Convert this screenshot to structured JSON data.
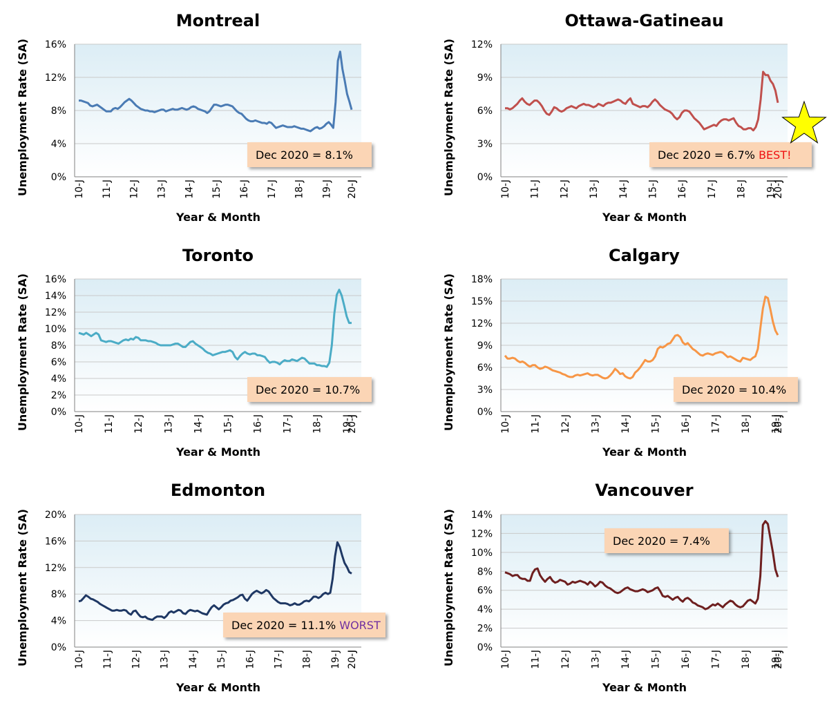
{
  "colors": {
    "plot_bg_top": "#dcedf5",
    "plot_bg_bottom": "#ffffff",
    "callout_fill": "#fbd5b5",
    "best_color": "#ee1111",
    "worst_color": "#7030a0",
    "star_fill": "#ffff00"
  },
  "chart_data": [
    {
      "type": "line",
      "title": "Montreal",
      "xlabel": "Year & Month",
      "ylabel": "Unemployment Rate (SA)",
      "color": "#4a7bb4",
      "ylim": [
        0,
        16
      ],
      "yticks": [
        "0%",
        "4%",
        "8%",
        "12%",
        "16%"
      ],
      "xticks": [
        "10-J",
        "11-J",
        "12-J",
        "13-J",
        "14-J",
        "15-J",
        "16-J",
        "17-J",
        "18-J",
        "19-J",
        "20-J",
        "J"
      ],
      "callout": {
        "text": "Dec 2020 = 8.1%",
        "tag": "",
        "pos": "lower-right"
      },
      "x_start": "2010-01",
      "values": [
        9.2,
        9.2,
        9.1,
        9.0,
        8.9,
        8.6,
        8.5,
        8.6,
        8.7,
        8.5,
        8.3,
        8.1,
        7.9,
        7.9,
        7.9,
        8.2,
        8.3,
        8.2,
        8.4,
        8.7,
        9.0,
        9.2,
        9.4,
        9.2,
        8.9,
        8.6,
        8.4,
        8.2,
        8.1,
        8.0,
        8.0,
        7.9,
        7.9,
        7.8,
        7.9,
        8.0,
        8.1,
        8.1,
        7.9,
        8.0,
        8.1,
        8.2,
        8.1,
        8.1,
        8.2,
        8.3,
        8.2,
        8.1,
        8.2,
        8.4,
        8.5,
        8.4,
        8.2,
        8.1,
        8.0,
        7.9,
        7.7,
        7.9,
        8.3,
        8.7,
        8.7,
        8.6,
        8.5,
        8.6,
        8.7,
        8.7,
        8.6,
        8.5,
        8.2,
        7.9,
        7.7,
        7.6,
        7.3,
        7.0,
        6.8,
        6.7,
        6.7,
        6.8,
        6.7,
        6.6,
        6.5,
        6.5,
        6.4,
        6.6,
        6.5,
        6.2,
        5.9,
        6.0,
        6.1,
        6.2,
        6.1,
        6.0,
        6.0,
        6.0,
        6.1,
        6.0,
        5.9,
        5.8,
        5.8,
        5.7,
        5.6,
        5.5,
        5.7,
        5.9,
        6.0,
        5.8,
        5.9,
        6.1,
        6.4,
        6.6,
        6.3,
        5.9,
        9.0,
        14.0,
        15.1,
        13.0,
        11.6,
        10.0,
        9.1,
        8.1
      ]
    },
    {
      "type": "line",
      "title": "Ottawa-Gatineau",
      "xlabel": "Year & Month",
      "ylabel": "Unemployment Rate (SA)",
      "color": "#c0504d",
      "ylim": [
        0,
        12
      ],
      "yticks": [
        "0%",
        "3%",
        "6%",
        "9%",
        "12%"
      ],
      "xticks": [
        "10-J",
        "11-J",
        "12-J",
        "13-J",
        "14-J",
        "15-J",
        "16-J",
        "17-J",
        "18-J",
        "19-J",
        "20-J",
        "J"
      ],
      "callout": {
        "text": "Dec 2020 = 6.7% ",
        "tag": "BEST!",
        "pos": "lower-right"
      },
      "x_start": "2010-01",
      "values": [
        6.2,
        6.2,
        6.1,
        6.2,
        6.4,
        6.6,
        6.9,
        7.1,
        6.8,
        6.6,
        6.5,
        6.7,
        6.9,
        6.9,
        6.7,
        6.4,
        6.0,
        5.7,
        5.6,
        5.9,
        6.3,
        6.2,
        6.0,
        5.9,
        6.0,
        6.2,
        6.3,
        6.4,
        6.3,
        6.2,
        6.4,
        6.5,
        6.6,
        6.5,
        6.5,
        6.4,
        6.3,
        6.4,
        6.6,
        6.5,
        6.4,
        6.6,
        6.7,
        6.7,
        6.8,
        6.9,
        7.0,
        6.9,
        6.7,
        6.6,
        6.9,
        7.1,
        6.6,
        6.5,
        6.4,
        6.3,
        6.4,
        6.4,
        6.3,
        6.5,
        6.8,
        7.0,
        6.8,
        6.5,
        6.3,
        6.1,
        6.0,
        5.9,
        5.7,
        5.4,
        5.2,
        5.4,
        5.8,
        6.0,
        6.0,
        5.9,
        5.6,
        5.3,
        5.1,
        4.9,
        4.6,
        4.3,
        4.4,
        4.5,
        4.6,
        4.7,
        4.6,
        4.9,
        5.1,
        5.2,
        5.2,
        5.1,
        5.2,
        5.3,
        4.9,
        4.6,
        4.5,
        4.3,
        4.3,
        4.4,
        4.4,
        4.2,
        4.5,
        5.2,
        7.0,
        9.5,
        9.2,
        9.2,
        8.7,
        8.4,
        7.8,
        6.7
      ]
    },
    {
      "type": "line",
      "title": "Toronto",
      "xlabel": "Year & Month",
      "ylabel": "Unemployment Rate (SA)",
      "color": "#4bacc6",
      "ylim": [
        0,
        16
      ],
      "yticks": [
        "0%",
        "2%",
        "4%",
        "6%",
        "8%",
        "10%",
        "12%",
        "14%",
        "16%"
      ],
      "xticks": [
        "10-J",
        "11-J",
        "12-J",
        "13-J",
        "14-J",
        "15-J",
        "16-J",
        "17-J",
        "18-J",
        "19-J",
        "20-J",
        "J"
      ],
      "callout": {
        "text": "Dec 2020 = 10.7%",
        "tag": "",
        "pos": "lower-right"
      },
      "x_start": "2010-01",
      "values": [
        9.5,
        9.4,
        9.3,
        9.5,
        9.3,
        9.1,
        9.3,
        9.5,
        9.3,
        8.6,
        8.5,
        8.4,
        8.5,
        8.5,
        8.4,
        8.3,
        8.2,
        8.4,
        8.6,
        8.7,
        8.6,
        8.8,
        8.7,
        9.0,
        8.9,
        8.6,
        8.6,
        8.6,
        8.5,
        8.5,
        8.4,
        8.3,
        8.1,
        8.0,
        8.0,
        8.0,
        8.0,
        8.0,
        8.1,
        8.2,
        8.2,
        8.0,
        7.8,
        7.8,
        8.1,
        8.4,
        8.5,
        8.2,
        8.0,
        7.8,
        7.6,
        7.3,
        7.1,
        7.0,
        6.8,
        6.9,
        7.0,
        7.1,
        7.2,
        7.2,
        7.3,
        7.4,
        7.2,
        6.6,
        6.3,
        6.7,
        7.0,
        7.2,
        7.0,
        6.9,
        7.0,
        7.0,
        6.8,
        6.8,
        6.7,
        6.6,
        6.2,
        5.9,
        6.0,
        6.0,
        5.9,
        5.7,
        6.0,
        6.2,
        6.1,
        6.1,
        6.3,
        6.2,
        6.1,
        6.3,
        6.5,
        6.4,
        6.1,
        5.8,
        5.8,
        5.8,
        5.6,
        5.6,
        5.5,
        5.5,
        5.4,
        5.9,
        8.0,
        11.8,
        14.1,
        14.7,
        14.0,
        12.8,
        11.5,
        10.7,
        10.7
      ]
    },
    {
      "type": "line",
      "title": "Calgary",
      "xlabel": "Year & Month",
      "ylabel": "Unemployment Rate (SA)",
      "color": "#f79646",
      "ylim": [
        0,
        18
      ],
      "yticks": [
        "0%",
        "3%",
        "6%",
        "9%",
        "12%",
        "15%",
        "18%"
      ],
      "xticks": [
        "10-J",
        "11-J",
        "12-J",
        "13-J",
        "14-J",
        "15-J",
        "16-J",
        "17-J",
        "18-J",
        "19-J",
        "20-J",
        "J"
      ],
      "callout": {
        "text": "Dec 2020 = 10.4%",
        "tag": "",
        "pos": "lower-right"
      },
      "x_start": "2010-01",
      "values": [
        7.6,
        7.2,
        7.2,
        7.3,
        7.2,
        6.9,
        6.7,
        6.8,
        6.6,
        6.3,
        6.1,
        6.3,
        6.3,
        6.0,
        5.8,
        5.9,
        6.1,
        6.0,
        5.8,
        5.6,
        5.5,
        5.4,
        5.3,
        5.1,
        5.0,
        4.8,
        4.7,
        4.7,
        4.9,
        5.0,
        4.9,
        5.0,
        5.1,
        5.2,
        5.0,
        4.9,
        5.0,
        5.0,
        4.8,
        4.6,
        4.5,
        4.6,
        4.9,
        5.3,
        5.8,
        5.5,
        5.1,
        5.2,
        4.8,
        4.6,
        4.5,
        4.7,
        5.3,
        5.6,
        6.0,
        6.5,
        7.0,
        6.8,
        6.8,
        7.0,
        7.5,
        8.5,
        8.8,
        8.7,
        8.9,
        9.2,
        9.3,
        9.8,
        10.3,
        10.4,
        10.1,
        9.4,
        9.1,
        9.3,
        8.9,
        8.5,
        8.3,
        8.0,
        7.7,
        7.6,
        7.8,
        7.9,
        7.8,
        7.7,
        7.9,
        8.0,
        8.1,
        8.0,
        7.7,
        7.4,
        7.5,
        7.3,
        7.1,
        6.9,
        6.8,
        7.3,
        7.2,
        7.1,
        7.0,
        7.3,
        7.5,
        8.5,
        11.3,
        14.0,
        15.6,
        15.4,
        13.9,
        12.2,
        11.0,
        10.4
      ]
    },
    {
      "type": "line",
      "title": "Edmonton",
      "xlabel": "Year & Month",
      "ylabel": "Unemployment Rate (SA)",
      "color": "#1f3864",
      "ylim": [
        0,
        20
      ],
      "yticks": [
        "0%",
        "4%",
        "8%",
        "12%",
        "16%",
        "20%"
      ],
      "xticks": [
        "10-J",
        "11-J",
        "12-J",
        "13-J",
        "14-J",
        "15-J",
        "16-J",
        "17-J",
        "18-J",
        "19-J",
        "20-J",
        "J"
      ],
      "callout": {
        "text": "Dec 2020 = 11.1% ",
        "tag": "WORST",
        "pos": "lower-right"
      },
      "x_start": "2010-01",
      "values": [
        6.9,
        7.0,
        7.4,
        7.8,
        7.6,
        7.3,
        7.2,
        7.0,
        6.8,
        6.5,
        6.3,
        6.1,
        5.9,
        5.7,
        5.5,
        5.5,
        5.6,
        5.5,
        5.5,
        5.6,
        5.5,
        5.1,
        4.9,
        5.4,
        5.5,
        5.0,
        4.6,
        4.5,
        4.6,
        4.3,
        4.2,
        4.1,
        4.4,
        4.6,
        4.6,
        4.6,
        4.4,
        4.7,
        5.2,
        5.4,
        5.2,
        5.4,
        5.6,
        5.5,
        5.1,
        5.0,
        5.4,
        5.6,
        5.5,
        5.4,
        5.5,
        5.3,
        5.1,
        5.0,
        4.9,
        5.5,
        6.0,
        6.3,
        6.0,
        5.7,
        6.0,
        6.4,
        6.6,
        6.7,
        7.0,
        7.1,
        7.3,
        7.5,
        7.8,
        7.9,
        7.3,
        7.0,
        7.5,
        8.0,
        8.3,
        8.5,
        8.3,
        8.1,
        8.3,
        8.6,
        8.4,
        7.9,
        7.4,
        7.1,
        6.8,
        6.6,
        6.6,
        6.6,
        6.5,
        6.3,
        6.4,
        6.6,
        6.4,
        6.4,
        6.6,
        6.9,
        7.0,
        6.9,
        7.2,
        7.6,
        7.6,
        7.4,
        7.6,
        8.0,
        8.2,
        8.0,
        8.2,
        10.3,
        13.7,
        15.8,
        15.1,
        13.8,
        12.7,
        12.1,
        11.3,
        11.1
      ]
    },
    {
      "type": "line",
      "title": "Vancouver",
      "xlabel": "Year & Month",
      "ylabel": "Unemployment Rate (SA)",
      "color": "#6e1f1f",
      "ylim": [
        0,
        14
      ],
      "yticks": [
        "0%",
        "2%",
        "4%",
        "6%",
        "8%",
        "10%",
        "12%",
        "14%"
      ],
      "xticks": [
        "10-J",
        "11-J",
        "12-J",
        "13-J",
        "14-J",
        "15-J",
        "16-J",
        "17-J",
        "18-J",
        "19-J",
        "20-J",
        "J"
      ],
      "callout": {
        "text": "Dec 2020 = 7.4%",
        "tag": "",
        "pos": "upper-middle"
      },
      "x_start": "2010-01",
      "values": [
        7.9,
        7.8,
        7.7,
        7.5,
        7.6,
        7.6,
        7.3,
        7.2,
        7.2,
        7.0,
        7.0,
        7.8,
        8.2,
        8.3,
        7.6,
        7.2,
        6.9,
        7.2,
        7.4,
        7.0,
        6.8,
        6.9,
        7.1,
        7.0,
        6.9,
        6.6,
        6.7,
        6.9,
        6.8,
        6.9,
        7.0,
        6.9,
        6.8,
        6.6,
        6.9,
        6.7,
        6.4,
        6.6,
        6.9,
        6.8,
        6.5,
        6.3,
        6.2,
        6.0,
        5.8,
        5.7,
        5.8,
        6.0,
        6.2,
        6.3,
        6.1,
        6.0,
        5.9,
        5.9,
        6.0,
        6.1,
        6.0,
        5.8,
        5.9,
        6.0,
        6.2,
        6.3,
        5.9,
        5.4,
        5.3,
        5.4,
        5.2,
        5.0,
        5.2,
        5.3,
        5.0,
        4.8,
        5.1,
        5.2,
        5.0,
        4.7,
        4.6,
        4.4,
        4.3,
        4.2,
        4.0,
        4.1,
        4.3,
        4.5,
        4.4,
        4.6,
        4.4,
        4.2,
        4.5,
        4.7,
        4.9,
        4.8,
        4.5,
        4.3,
        4.2,
        4.3,
        4.6,
        4.9,
        5.0,
        4.8,
        4.6,
        5.1,
        7.5,
        12.9,
        13.3,
        13.0,
        11.5,
        10.0,
        8.2,
        7.4
      ]
    }
  ]
}
